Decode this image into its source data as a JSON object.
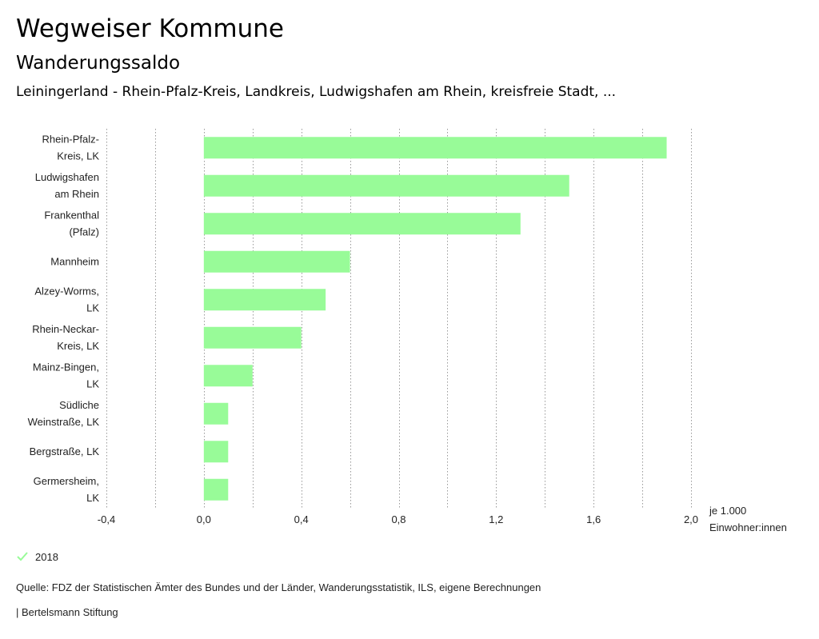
{
  "header": {
    "title": "Wegweiser Kommune",
    "subtitle": "Wanderungssaldo",
    "region": "Leiningerland - Rhein-Pfalz-Kreis, Landkreis, Ludwigshafen am Rhein, kreisfreie Stadt, ..."
  },
  "colors": {
    "bar": "#98fb98",
    "grid": "#999999",
    "text": "#222222"
  },
  "chart_data": {
    "type": "bar",
    "orientation": "horizontal",
    "categories": [
      [
        "Rhein-Pfalz-",
        "Kreis, LK"
      ],
      [
        "Ludwigshafen",
        "am Rhein"
      ],
      [
        "Frankenthal",
        "(Pfalz)"
      ],
      [
        "Mannheim"
      ],
      [
        "Alzey-Worms,",
        "LK"
      ],
      [
        "Rhein-Neckar-",
        "Kreis, LK"
      ],
      [
        "Mainz-Bingen,",
        "LK"
      ],
      [
        "Südliche",
        "Weinstraße, LK"
      ],
      [
        "Bergstraße, LK"
      ],
      [
        "Germersheim,",
        "LK"
      ]
    ],
    "series": [
      {
        "name": "2018",
        "values": [
          1.9,
          1.5,
          1.3,
          0.6,
          0.5,
          0.4,
          0.2,
          0.1,
          0.1,
          0.1
        ]
      }
    ],
    "xlim": [
      -0.4,
      2.0
    ],
    "ticks": [
      -0.4,
      -0.2,
      0.0,
      0.2,
      0.4,
      0.6,
      0.8,
      1.0,
      1.2,
      1.4,
      1.6,
      1.8,
      2.0
    ],
    "tick_labels": [
      "-0,4",
      "0,0",
      "0,4",
      "0,8",
      "1,2",
      "1,6",
      "2,0"
    ],
    "tick_label_values": [
      -0.4,
      0.0,
      0.4,
      0.8,
      1.2,
      1.6,
      2.0
    ],
    "unit_label": [
      "je 1.000",
      "Einwohner:innen"
    ],
    "grid": true
  },
  "legend": {
    "label": "2018"
  },
  "footer": {
    "source": "Quelle: FDZ der Statistischen Ämter des Bundes und der Länder, Wanderungsstatistik, ILS, eigene Berechnungen",
    "publisher": "| Bertelsmann Stiftung"
  }
}
